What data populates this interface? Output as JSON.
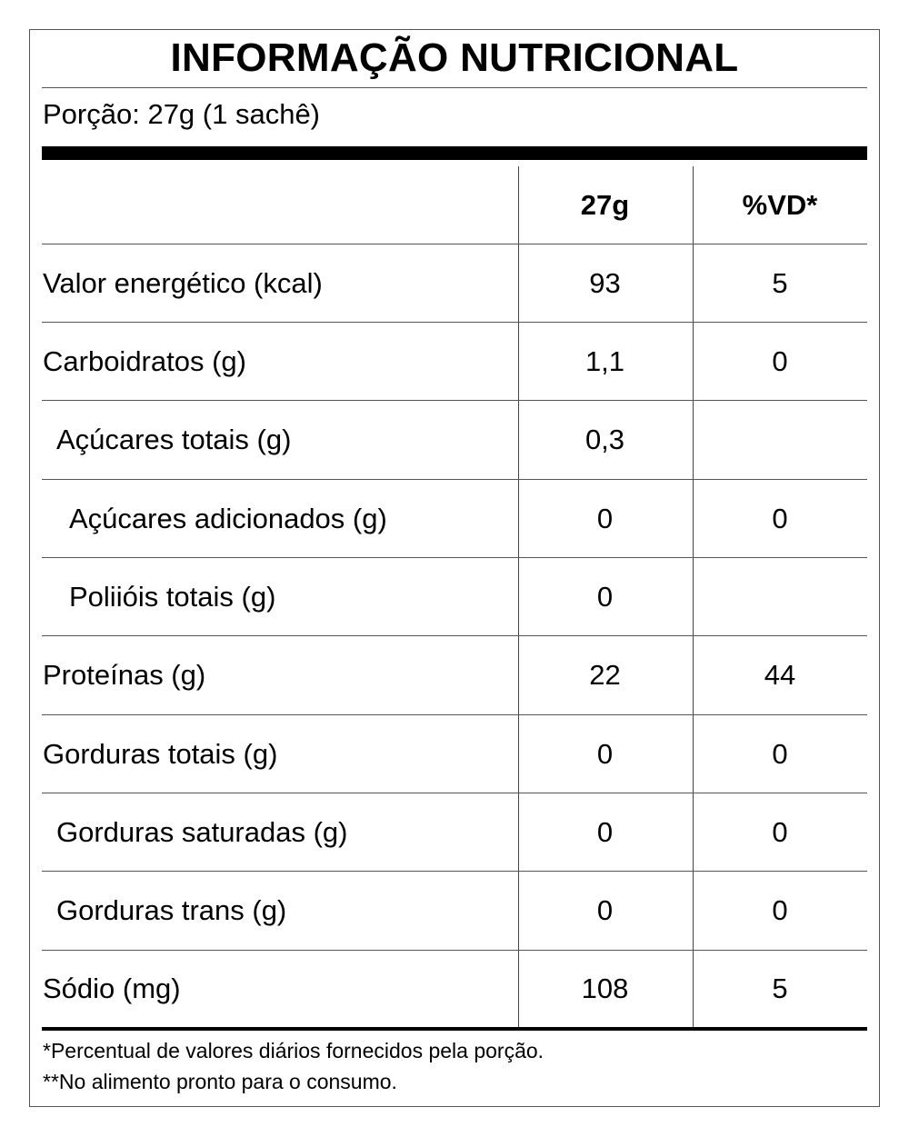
{
  "label": {
    "title": "INFORMAÇÃO NUTRICIONAL",
    "portion": "Porção: 27g (1 sachê)",
    "header": {
      "col_label": "",
      "col_amount": "27g",
      "col_dv": "%VD*"
    },
    "rows": [
      {
        "label": "Valor energético (kcal)",
        "amount": "93",
        "dv": "5",
        "indent": 0
      },
      {
        "label": "Carboidratos (g)",
        "amount": "1,1",
        "dv": "0",
        "indent": 0
      },
      {
        "label": "Açúcares totais (g)",
        "amount": "0,3",
        "dv": "",
        "indent": 1
      },
      {
        "label": "Açúcares adicionados (g)",
        "amount": "0",
        "dv": "0",
        "indent": 2
      },
      {
        "label": "Poliióis totais (g)",
        "amount": "0",
        "dv": "",
        "indent": 2
      },
      {
        "label": "Proteínas (g)",
        "amount": "22",
        "dv": "44",
        "indent": 0
      },
      {
        "label": "Gorduras totais (g)",
        "amount": "0",
        "dv": "0",
        "indent": 0
      },
      {
        "label": "Gorduras saturadas (g)",
        "amount": "0",
        "dv": "0",
        "indent": 1
      },
      {
        "label": "Gorduras trans (g)",
        "amount": "0",
        "dv": "0",
        "indent": 1
      },
      {
        "label": "Sódio (mg)",
        "amount": "108",
        "dv": "5",
        "indent": 0
      }
    ],
    "footnotes": [
      "*Percentual de valores diários fornecidos pela porção.",
      "**No alimento pronto para o consumo."
    ]
  }
}
